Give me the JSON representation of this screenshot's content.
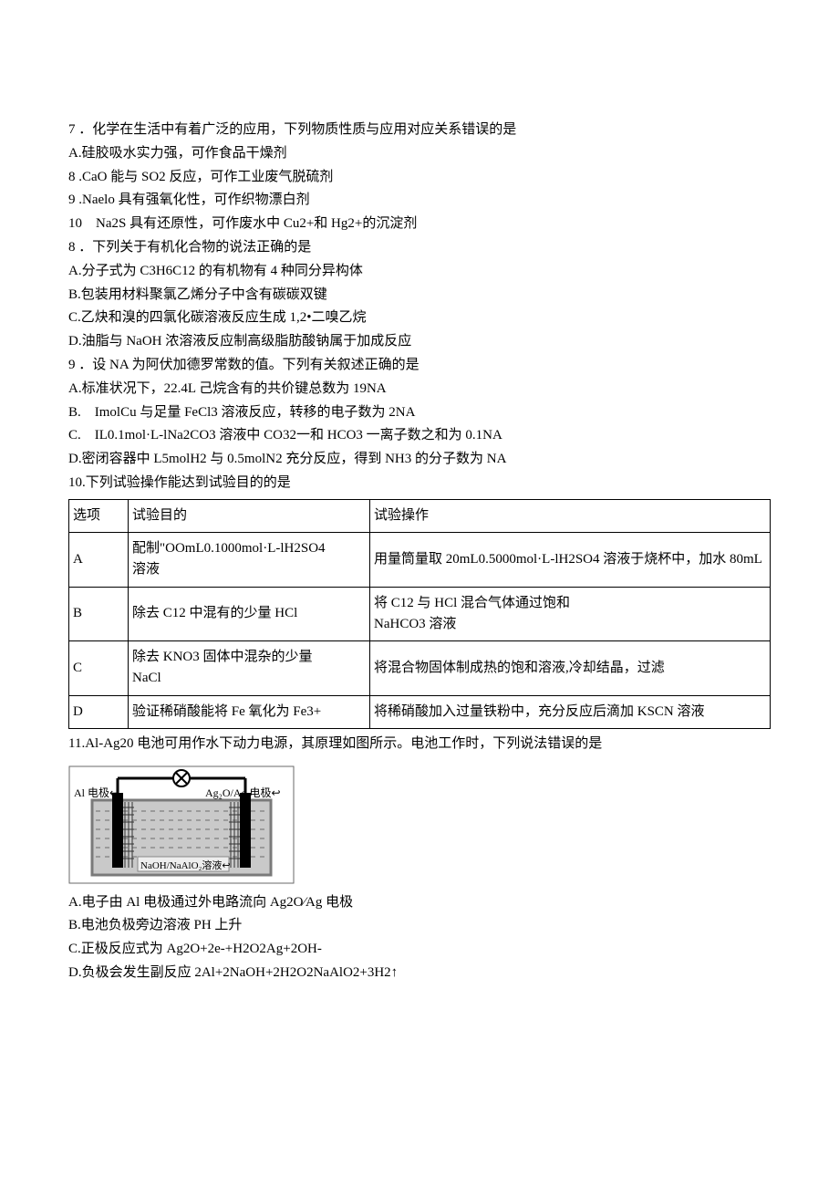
{
  "lines_top": [
    "7 ．化学在生活中有着广泛的应用，下列物质性质与应用对应关系错误的是",
    "A.硅胶吸水实力强，可作食品干燥剂",
    "8 .CaO 能与 SO2 反应，可作工业废气脱硫剂",
    "9 .Naelo 具有强氧化性，可作织物漂白剂",
    "10　Na2S 具有还原性，可作废水中 Cu2+和 Hg2+的沉淀剂",
    "8 ．下列关于有机化合物的说法正确的是",
    "A.分子式为 C3H6C12 的有机物有 4 种同分异构体",
    "B.包装用材料聚氯乙烯分子中含有碳碳双键",
    "C.乙炔和溴的四氯化碳溶液反应生成 1,2•二嗅乙烷",
    "D.油脂与 NaOH 浓溶液反应制高级脂肪酸钠属于加成反应",
    "9 ．设 NA 为阿伏加德罗常数的值。下列有关叙述正确的是",
    "A.标准状况下，22.4L 己烷含有的共价键总数为 19NA",
    "B.　ImolCu 与足量 FeCl3 溶液反应，转移的电子数为 2NA",
    "C.　IL0.1mol·L-lNa2CO3 溶液中 CO32一和 HCO3 一离子数之和为 0.1NA",
    "D.密闭容器中 L5molH2 与 0.5molN2 充分反应，得到 NH3 的分子数为 NA",
    "10.下列试验操作能达到试验目的的是"
  ],
  "table": {
    "header": {
      "opt": "选项",
      "purpose": "试验目的",
      "op": "试验操作"
    },
    "rows": [
      {
        "opt": "A",
        "purpose": "配制\"OOmL0.1000mol·L-lH2SO4\n溶液",
        "op": "用量筒量取 20mL0.5000mol·L-lH2SO4 溶液于烧杯中，加水 80mL"
      },
      {
        "opt": "B",
        "purpose": "除去 C12 中混有的少量 HCl",
        "op": "将 C12 与 HCl 混合气体通过饱和\nNaHCO3 溶液"
      },
      {
        "opt": "C",
        "purpose": "除去 KNO3 固体中混杂的少量\nNaCl",
        "op": "将混合物固体制成热的饱和溶液,冷却结晶，过滤"
      },
      {
        "opt": "D",
        "purpose": "验证稀硝酸能将 Fe 氧化为 Fe3+",
        "op": "将稀硝酸加入过量铁粉中，充分反应后滴加 KSCN 溶液"
      }
    ]
  },
  "q11_intro": "11.Al-Ag20 电池可用作水下动力电源，其原理如图所示。电池工作时，下列说法错误的是",
  "diagram": {
    "labels": {
      "left": "Al 电极↩",
      "right": "Ag₂O/Ag 电极↩",
      "inner": "NaOH/NaAlO₂溶液↩"
    },
    "colors": {
      "outline": "#4a4a4a",
      "vessel_fill": "#c9c9c9",
      "vessel_stroke": "#7a7a7a",
      "liquid_dash": "#6a6a6a",
      "electrode": "#000000",
      "mesh": "#333333",
      "wire": "#000000",
      "label_box_fill": "#eeeeee",
      "label_box_stroke": "#888888"
    }
  },
  "lines_bottom": [
    "A.电子由 Al 电极通过外电路流向 Ag2O⁄Ag 电极",
    "B.电池负极旁边溶液 PH 上升",
    "C.正极反应式为 Ag2O+2e-+H2O2Ag+2OH-",
    "D.负极会发生副反应 2Al+2NaOH+2H2O2NaAlO2+3H2↑"
  ]
}
